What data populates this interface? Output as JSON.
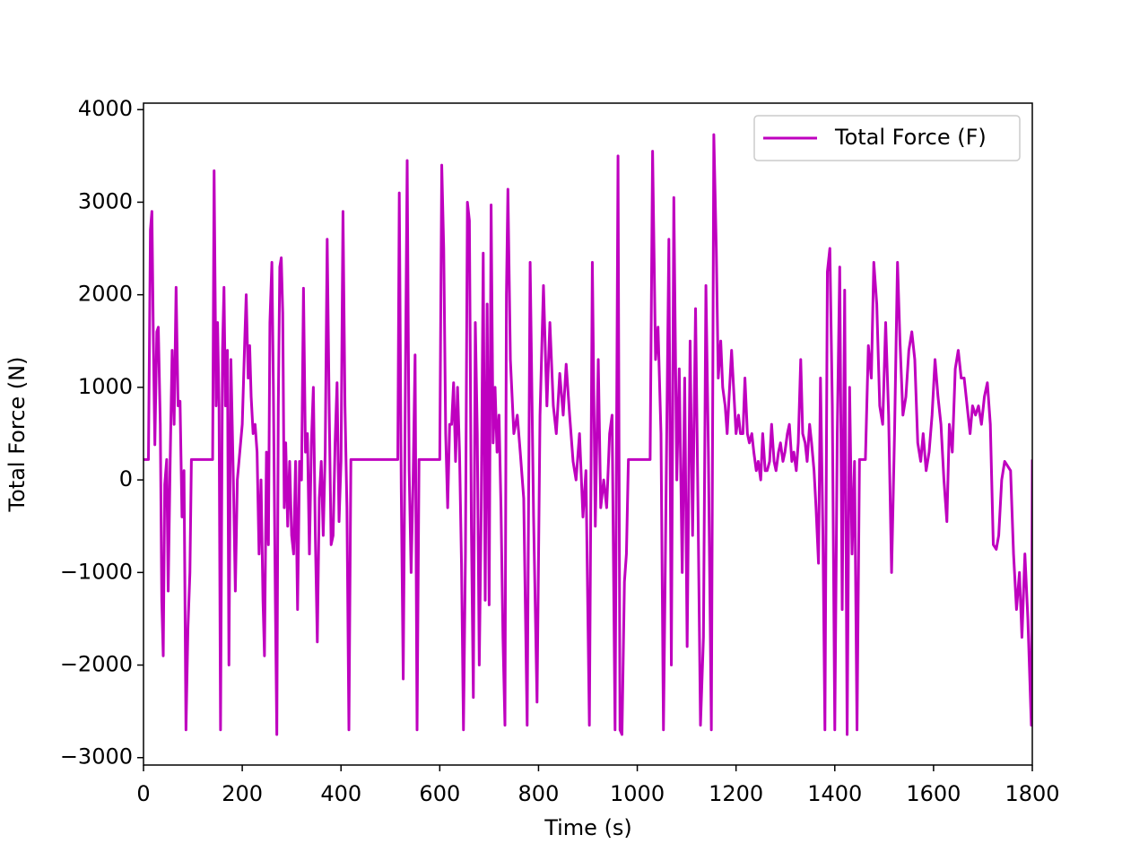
{
  "chart_data": {
    "type": "line",
    "xlabel": "Time (s)",
    "ylabel": "Total Force (N)",
    "xlim": [
      0,
      1800
    ],
    "ylim": [
      -3080,
      4070
    ],
    "xticks": [
      0,
      200,
      400,
      600,
      800,
      1000,
      1200,
      1400,
      1600,
      1800
    ],
    "yticks": [
      {
        "value": -3000,
        "label": "−3000"
      },
      {
        "value": -2000,
        "label": "−2000"
      },
      {
        "value": -1000,
        "label": "−1000"
      },
      0,
      1000,
      2000,
      3000,
      4000
    ],
    "legend": "upper right",
    "x": [
      0,
      10,
      14,
      17,
      20,
      23,
      27,
      30,
      34,
      37,
      40,
      43,
      47,
      50,
      54,
      58,
      62,
      66,
      70,
      74,
      78,
      82,
      86,
      90,
      94,
      97,
      140,
      143,
      147,
      150,
      153,
      156,
      160,
      163,
      166,
      170,
      173,
      177,
      182,
      186,
      190,
      195,
      200,
      205,
      208,
      212,
      215,
      218,
      222,
      226,
      230,
      234,
      238,
      242,
      245,
      249,
      253,
      256,
      260,
      263,
      267,
      270,
      273,
      276,
      279,
      282,
      285,
      288,
      292,
      296,
      300,
      304,
      308,
      312,
      316,
      320,
      324,
      328,
      332,
      336,
      340,
      344,
      348,
      352,
      356,
      360,
      364,
      368,
      372,
      376,
      380,
      384,
      388,
      392,
      396,
      400,
      404,
      408,
      412,
      416,
      420,
      515,
      518,
      522,
      526,
      530,
      534,
      538,
      542,
      546,
      550,
      554,
      558,
      600,
      604,
      608,
      612,
      616,
      620,
      624,
      628,
      632,
      636,
      640,
      644,
      648,
      652,
      656,
      660,
      664,
      668,
      672,
      676,
      680,
      684,
      688,
      692,
      696,
      700,
      704,
      708,
      712,
      716,
      720,
      724,
      728,
      732,
      735,
      738,
      743,
      750,
      757,
      763,
      770,
      777,
      783,
      790,
      797,
      803,
      810,
      817,
      823,
      830,
      836,
      843,
      850,
      856,
      863,
      870,
      876,
      883,
      890,
      896,
      903,
      909,
      915,
      921,
      926,
      932,
      938,
      944,
      949,
      955,
      961,
      965,
      969,
      974,
      978,
      982,
      1026,
      1031,
      1037,
      1042,
      1048,
      1053,
      1058,
      1064,
      1069,
      1074,
      1080,
      1085,
      1091,
      1096,
      1101,
      1107,
      1112,
      1118,
      1123,
      1128,
      1134,
      1139,
      1144,
      1150,
      1155,
      1160,
      1164,
      1169,
      1173,
      1178,
      1182,
      1187,
      1191,
      1196,
      1200,
      1205,
      1209,
      1214,
      1218,
      1223,
      1227,
      1232,
      1236,
      1241,
      1245,
      1250,
      1254,
      1259,
      1263,
      1268,
      1272,
      1277,
      1281,
      1286,
      1290,
      1295,
      1299,
      1304,
      1308,
      1313,
      1317,
      1322,
      1326,
      1331,
      1335,
      1340,
      1344,
      1349,
      1353,
      1358,
      1362,
      1367,
      1371,
      1376,
      1380,
      1385,
      1390,
      1395,
      1400,
      1405,
      1410,
      1415,
      1420,
      1425,
      1430,
      1435,
      1440,
      1445,
      1450,
      1462,
      1468,
      1474,
      1479,
      1485,
      1491,
      1497,
      1503,
      1509,
      1515,
      1521,
      1527,
      1532,
      1538,
      1544,
      1550,
      1556,
      1562,
      1568,
      1574,
      1579,
      1585,
      1591,
      1597,
      1603,
      1609,
      1615,
      1621,
      1627,
      1632,
      1638,
      1644,
      1650,
      1656,
      1662,
      1668,
      1674,
      1679,
      1685,
      1691,
      1697,
      1703,
      1709,
      1715,
      1721,
      1727,
      1732,
      1738,
      1744,
      1750,
      1756,
      1762,
      1768,
      1774,
      1779,
      1785,
      1791,
      1798,
      1800
    ],
    "series": [
      {
        "name": "Total Force (F)",
        "color": "#bf00bf",
        "values": [
          220,
          220,
          2700,
          2900,
          1500,
          380,
          1600,
          1650,
          600,
          -1300,
          -1900,
          -50,
          220,
          -1200,
          200,
          1400,
          600,
          2080,
          800,
          850,
          -400,
          100,
          -2700,
          -1600,
          -1000,
          220,
          220,
          3340,
          800,
          1700,
          800,
          -2700,
          1400,
          2080,
          800,
          1400,
          -2000,
          1300,
          0,
          -1200,
          0,
          300,
          600,
          1500,
          2000,
          1100,
          1450,
          900,
          500,
          600,
          300,
          -800,
          0,
          -1300,
          -1900,
          300,
          -700,
          1700,
          2350,
          1000,
          -1300,
          -2750,
          800,
          2300,
          2400,
          1800,
          -300,
          400,
          -500,
          200,
          -600,
          -800,
          200,
          -1400,
          200,
          0,
          2070,
          300,
          500,
          -800,
          400,
          1000,
          -600,
          -1750,
          -200,
          200,
          -600,
          300,
          2600,
          800,
          -700,
          -600,
          400,
          1050,
          -450,
          200,
          2900,
          800,
          -300,
          -2700,
          220,
          220,
          3100,
          -100,
          -2150,
          800,
          3450,
          100,
          -1000,
          0,
          1350,
          -2700,
          220,
          220,
          3400,
          2500,
          500,
          -300,
          600,
          600,
          1050,
          200,
          1000,
          300,
          -900,
          -2700,
          -800,
          3000,
          2800,
          -500,
          -2350,
          1700,
          500,
          -2000,
          -300,
          2450,
          -1300,
          1900,
          -1350,
          2970,
          400,
          1000,
          300,
          700,
          -300,
          -1700,
          -2650,
          2000,
          3140,
          1300,
          500,
          700,
          300,
          -200,
          -2650,
          2350,
          -400,
          -2400,
          700,
          2100,
          800,
          1700,
          800,
          500,
          1150,
          700,
          1250,
          700,
          200,
          0,
          500,
          -400,
          100,
          -2650,
          2350,
          -500,
          1300,
          -300,
          0,
          -300,
          500,
          700,
          -2700,
          3500,
          -2700,
          -2750,
          -1100,
          -800,
          220,
          220,
          3550,
          1300,
          1650,
          500,
          -2700,
          -300,
          2600,
          -2000,
          3050,
          0,
          1200,
          -1000,
          1100,
          -1800,
          1500,
          -600,
          1850,
          -300,
          -2650,
          -1700,
          2100,
          300,
          -2700,
          3730,
          2500,
          1100,
          1500,
          1000,
          800,
          500,
          1000,
          1400,
          900,
          500,
          700,
          500,
          500,
          1100,
          500,
          400,
          500,
          300,
          100,
          200,
          0,
          500,
          100,
          100,
          200,
          600,
          200,
          100,
          300,
          400,
          200,
          300,
          500,
          600,
          200,
          300,
          100,
          400,
          1300,
          500,
          400,
          200,
          600,
          400,
          100,
          -300,
          -900,
          1100,
          -600,
          -2700,
          2250,
          2500,
          800,
          -2700,
          500,
          2300,
          -1400,
          2050,
          -2750,
          1000,
          -800,
          200,
          -2700,
          220,
          220,
          1450,
          1100,
          2350,
          1900,
          800,
          600,
          1700,
          700,
          -1000,
          500,
          2350,
          1500,
          700,
          900,
          1400,
          1600,
          1300,
          400,
          200,
          500,
          100,
          300,
          700,
          1300,
          900,
          600,
          0,
          -450,
          600,
          300,
          1200,
          1400,
          1100,
          1100,
          800,
          500,
          800,
          700,
          800,
          600,
          900,
          1050,
          600,
          -700,
          -750,
          -600,
          0,
          200,
          150,
          100,
          -800,
          -1400,
          -1000,
          -1700,
          -800,
          -1500,
          -2650,
          220
        ]
      }
    ]
  }
}
